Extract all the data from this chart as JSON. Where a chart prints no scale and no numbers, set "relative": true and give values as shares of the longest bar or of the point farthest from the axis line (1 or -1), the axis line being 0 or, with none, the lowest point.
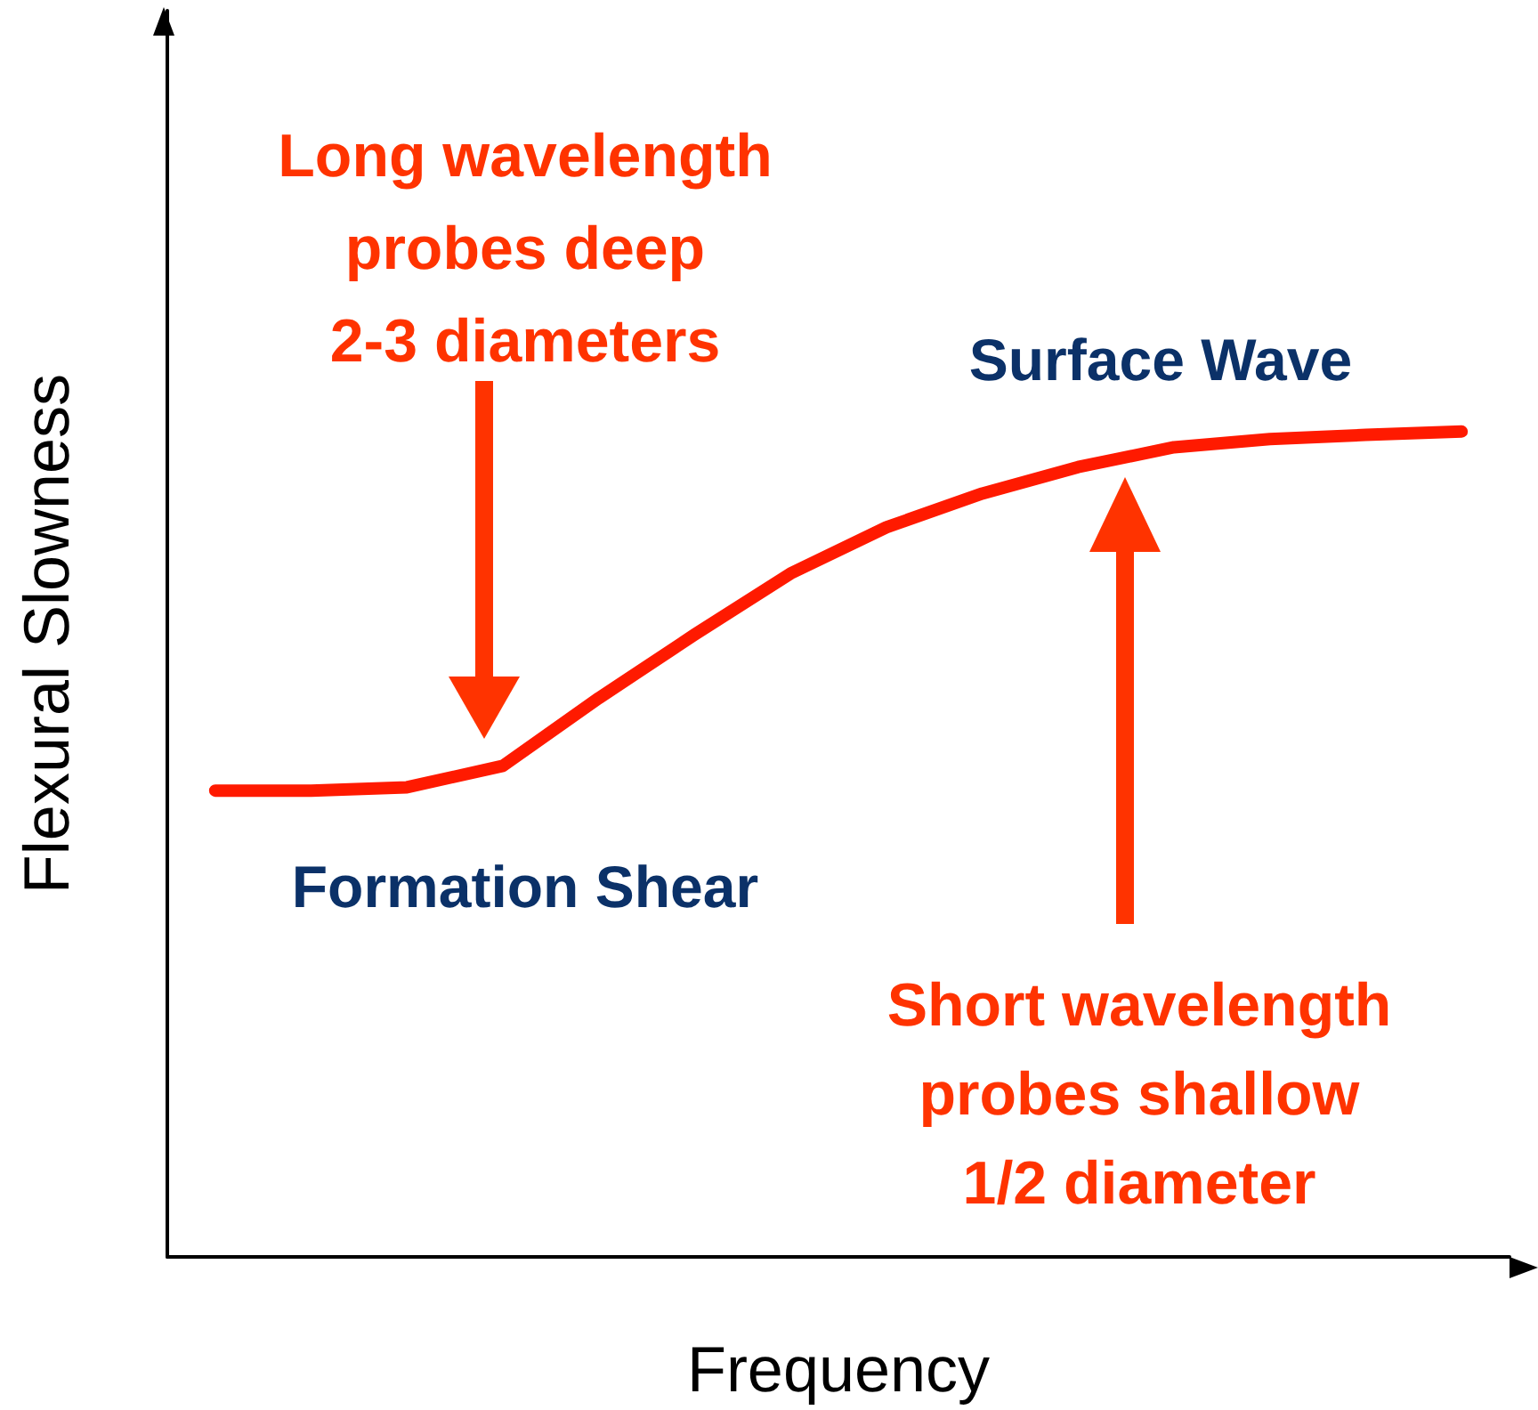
{
  "chart_data": {
    "type": "line",
    "relative": true,
    "xlabel": "Frequency",
    "ylabel": "Flexural Slowness",
    "categories": [
      null,
      null,
      null,
      null,
      null,
      null,
      null,
      null,
      null,
      null,
      null,
      null,
      null,
      null
    ],
    "series": [
      {
        "color": "#ff1a00",
        "values": [
          0.565,
          0.565,
          0.569,
          0.595,
          0.677,
          0.754,
          0.828,
          0.884,
          0.925,
          0.957,
          0.981,
          0.991,
          0.996,
          1
        ]
      }
    ],
    "annotations": [
      "Long wavelength\nprobes deep\n2-3 diameters",
      "Surface Wave",
      "Formation Shear",
      "Short wavelength\nprobes shallow\n1/2 diameter"
    ]
  }
}
